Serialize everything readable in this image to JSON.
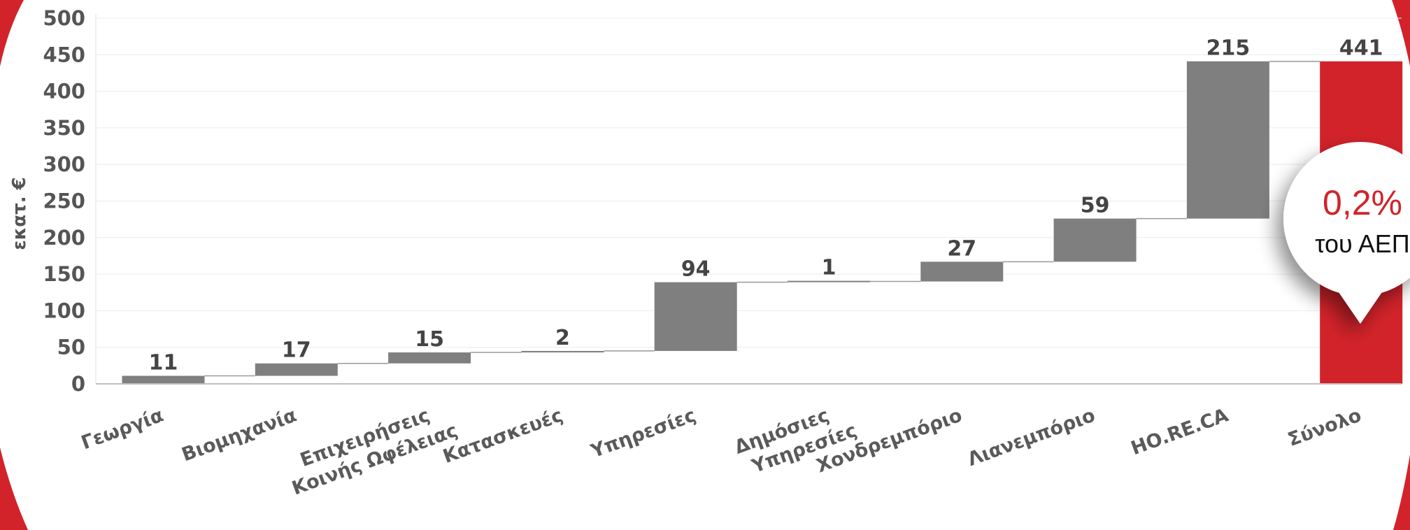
{
  "chart_data": {
    "type": "bar",
    "variant": "waterfall",
    "ylabel": "εκατ. €",
    "ylim": [
      0,
      500
    ],
    "yticks": [
      0,
      50,
      100,
      150,
      200,
      250,
      300,
      350,
      400,
      450,
      500
    ],
    "grid": true,
    "categories": [
      "Γεωργία",
      "Βιομηχανία",
      "Επιχειρήσεις\nΚοινής Ωφέλειας",
      "Κατασκευές",
      "Υπηρεσίες",
      "Δημόσιες\nΥπηρεσίες",
      "Χονδρεμπόριο",
      "Λιανεμπόριο",
      "HO.RE.CA",
      "Σύνολο"
    ],
    "values": [
      11,
      17,
      15,
      2,
      94,
      1,
      27,
      59,
      215,
      441
    ],
    "data_labels": [
      "11",
      "17",
      "15",
      "2",
      "94",
      "1",
      "27",
      "59",
      "215",
      "441"
    ],
    "total_index": 9
  },
  "callout": {
    "percent": "0,2%",
    "label": "του ΑΕΠ"
  },
  "colors": {
    "bar": "#7f7f7f",
    "total": "#d2232a",
    "accent": "#d2232a",
    "axis_text": "#555555",
    "grid": "#ececec"
  }
}
